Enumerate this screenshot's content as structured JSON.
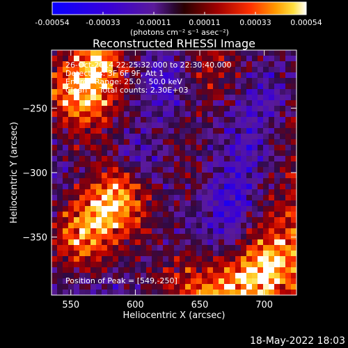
{
  "chart_data": {
    "type": "heatmap",
    "title": "Reconstructed RHESSI Image",
    "xlabel": "Heliocentric X (arcsec)",
    "ylabel": "Heliocentric Y (arcsec)",
    "xlim": [
      535,
      725
    ],
    "ylim": [
      -395,
      -205
    ],
    "xticks": [
      550,
      600,
      650,
      700
    ],
    "yticks": [
      -250,
      -300,
      -350
    ],
    "grid": false,
    "colorbar": {
      "position": "top",
      "range": [
        -0.00054,
        0.00054
      ],
      "ticks": [
        "-0.00054",
        "-0.00033",
        "-0.00011",
        "0.00011",
        "0.00033",
        "0.00054"
      ],
      "units": "(photons cm⁻² s⁻¹ asec⁻²)"
    },
    "annotations": [
      "26-Oct-2014 22:25:32.000 to 22:30:40.000",
      "Detectors: 3F 6F 9F, Att 1",
      "Energy Range: 25.0 - 50.0 keV",
      "Clean     Total counts: 2.30E+03",
      "Position of Peak = [549,-250]"
    ],
    "peak_position": [
      549,
      -250
    ],
    "intensity_grid_note_free": [
      [
        0.1,
        0.3,
        0.7,
        0.8,
        0.6,
        0.2,
        0.0,
        -0.2,
        -0.3,
        -0.1,
        0.1,
        0.2,
        0.3,
        0.1,
        0.0,
        -0.1,
        0.0,
        0.1
      ],
      [
        0.3,
        0.6,
        0.9,
        1.0,
        0.7,
        0.3,
        0.0,
        -0.3,
        -0.4,
        -0.2,
        0.1,
        0.3,
        0.2,
        0.1,
        -0.1,
        -0.2,
        -0.1,
        0.0
      ],
      [
        0.5,
        0.8,
        1.0,
        0.9,
        0.6,
        0.2,
        -0.1,
        -0.4,
        -0.4,
        -0.2,
        0.0,
        0.2,
        0.1,
        0.0,
        -0.2,
        -0.3,
        -0.2,
        0.0
      ],
      [
        0.4,
        0.7,
        0.8,
        0.7,
        0.4,
        0.1,
        -0.2,
        -0.3,
        -0.3,
        -0.1,
        0.1,
        0.1,
        0.0,
        -0.1,
        -0.3,
        -0.4,
        -0.2,
        0.1
      ],
      [
        0.2,
        0.4,
        0.5,
        0.4,
        0.2,
        0.0,
        -0.1,
        -0.2,
        -0.1,
        0.0,
        0.0,
        0.0,
        -0.1,
        -0.2,
        -0.3,
        -0.3,
        -0.1,
        0.1
      ],
      [
        0.0,
        0.2,
        0.3,
        0.2,
        0.1,
        -0.1,
        -0.2,
        -0.1,
        0.0,
        0.1,
        0.0,
        -0.1,
        -0.2,
        -0.3,
        -0.4,
        -0.2,
        0.0,
        0.2
      ],
      [
        -0.1,
        0.0,
        0.1,
        0.1,
        0.0,
        -0.2,
        -0.3,
        -0.2,
        0.0,
        0.2,
        0.1,
        -0.1,
        -0.2,
        -0.4,
        -0.4,
        -0.2,
        0.1,
        0.2
      ],
      [
        -0.2,
        -0.1,
        0.0,
        0.2,
        0.4,
        0.3,
        0.0,
        -0.2,
        -0.1,
        0.1,
        0.1,
        -0.1,
        -0.3,
        -0.4,
        -0.3,
        -0.1,
        0.1,
        0.3
      ],
      [
        -0.1,
        0.0,
        0.3,
        0.6,
        0.8,
        0.7,
        0.4,
        0.1,
        -0.1,
        0.0,
        0.0,
        -0.2,
        -0.4,
        -0.5,
        -0.3,
        0.0,
        0.2,
        0.3
      ],
      [
        0.0,
        0.3,
        0.6,
        0.9,
        1.0,
        0.8,
        0.5,
        0.2,
        0.0,
        -0.1,
        -0.1,
        -0.3,
        -0.5,
        -0.5,
        -0.2,
        0.1,
        0.3,
        0.4
      ],
      [
        0.2,
        0.5,
        0.8,
        1.0,
        0.8,
        0.6,
        0.4,
        0.2,
        0.0,
        -0.1,
        -0.2,
        -0.3,
        -0.4,
        -0.3,
        0.0,
        0.3,
        0.5,
        0.5
      ],
      [
        0.3,
        0.6,
        0.8,
        0.7,
        0.5,
        0.3,
        0.2,
        0.1,
        0.0,
        0.0,
        -0.1,
        -0.2,
        -0.2,
        0.0,
        0.3,
        0.6,
        0.7,
        0.6
      ],
      [
        0.1,
        0.3,
        0.4,
        0.3,
        0.2,
        0.1,
        0.0,
        0.0,
        0.1,
        0.2,
        0.1,
        0.1,
        0.2,
        0.4,
        0.7,
        0.9,
        0.9,
        0.7
      ],
      [
        0.0,
        0.1,
        0.1,
        0.0,
        -0.1,
        -0.1,
        0.0,
        0.1,
        0.2,
        0.4,
        0.5,
        0.5,
        0.6,
        0.8,
        1.0,
        1.0,
        0.8,
        0.6
      ],
      [
        -0.1,
        -0.1,
        -0.2,
        -0.2,
        -0.2,
        -0.1,
        0.0,
        0.1,
        0.2,
        0.4,
        0.6,
        0.7,
        0.8,
        0.9,
        0.9,
        0.8,
        0.6,
        0.4
      ]
    ]
  },
  "footer": {
    "timestamp": "18-May-2022 18:03"
  }
}
